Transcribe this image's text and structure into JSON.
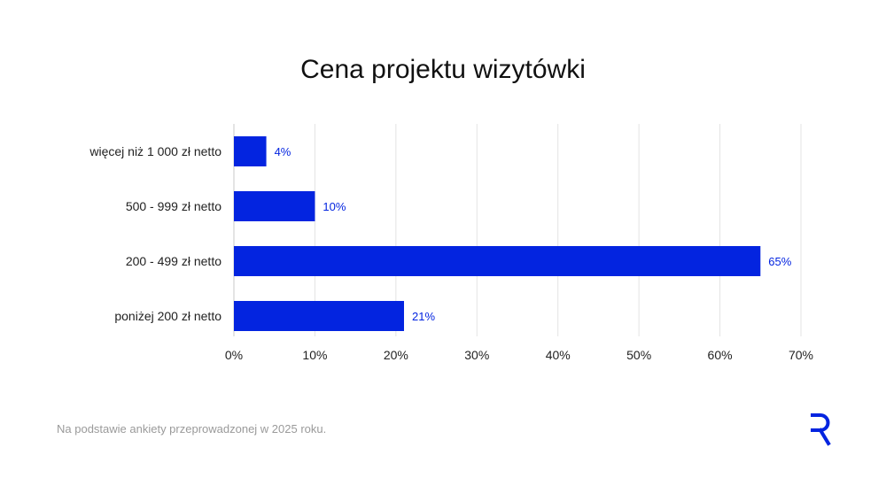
{
  "chart_data": {
    "type": "bar",
    "orientation": "horizontal",
    "title": "Cena projektu wizytówki",
    "categories": [
      "więcej niż 1 000 zł netto",
      "500 - 999 zł netto",
      "200 - 499 zł netto",
      "poniżej 200 zł netto"
    ],
    "values": [
      4,
      10,
      65,
      21
    ],
    "data_labels": [
      "4%",
      "10%",
      "65%",
      "21%"
    ],
    "xlim": [
      0,
      70
    ],
    "x_ticks": [
      0,
      10,
      20,
      30,
      40,
      50,
      60,
      70
    ],
    "x_tick_labels": [
      "0%",
      "10%",
      "20%",
      "30%",
      "40%",
      "50%",
      "60%",
      "70%"
    ],
    "xlabel": "",
    "ylabel": "",
    "grid": "vertical",
    "legend": "none",
    "bar_color": "#0324E0",
    "label_color": "#0324E0"
  },
  "footnote": "Na podstawie ankiety przeprowadzonej w 2025 roku.",
  "brand": {
    "logo_icon": "r-logo-icon",
    "color": "#0324E0"
  }
}
